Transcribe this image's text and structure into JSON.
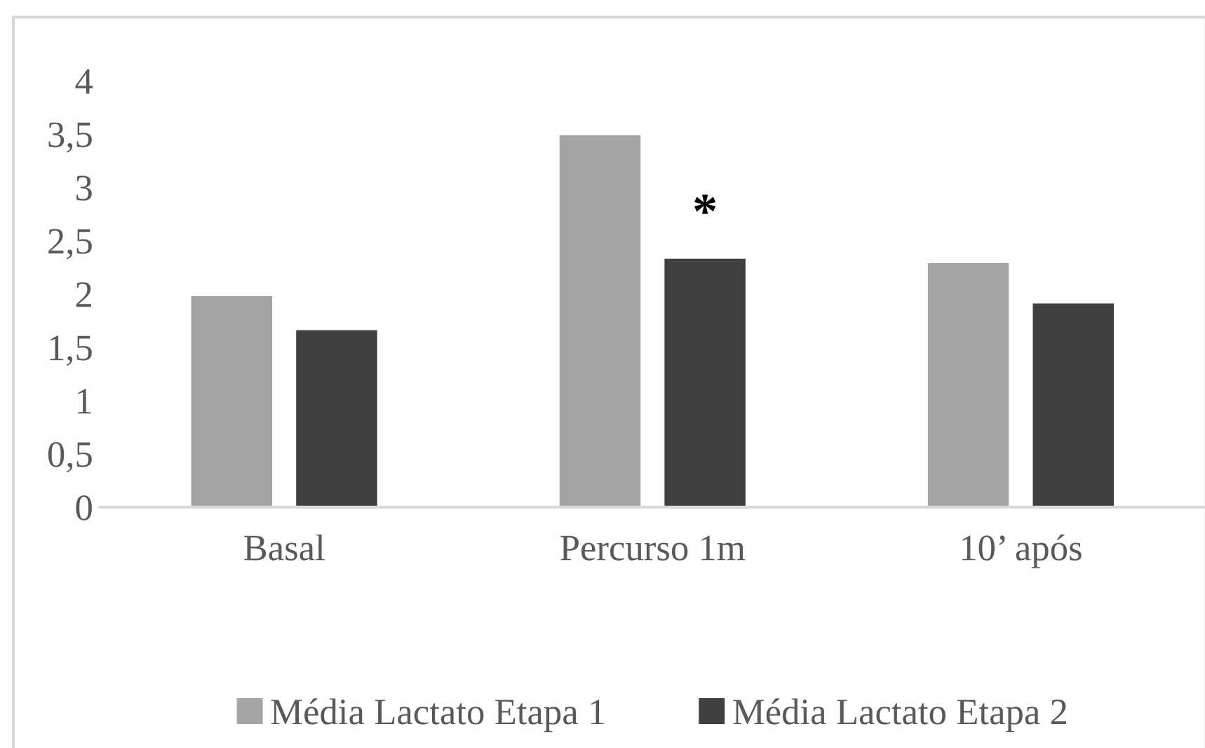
{
  "chart_data": {
    "type": "bar",
    "categories": [
      "Basal",
      "Percurso 1m",
      "10’ após"
    ],
    "series": [
      {
        "name": "Média Lactato Etapa 1",
        "color": "#a5a5a5",
        "values": [
          1.98,
          3.49,
          2.29
        ]
      },
      {
        "name": "Média Lactato Etapa 2",
        "color": "#404040",
        "values": [
          1.66,
          2.33,
          1.91
        ]
      }
    ],
    "ylim": [
      0,
      4
    ],
    "yticks": [
      0,
      {
        "value": 0.5,
        "label": "0,5"
      },
      1,
      {
        "value": 1.5,
        "label": "1,5"
      },
      2,
      {
        "value": 2.5,
        "label": "2,5"
      },
      3,
      {
        "value": 3.5,
        "label": "3,5"
      },
      4
    ],
    "annotations": [
      "*"
    ],
    "grid": false,
    "legend": "bottom"
  }
}
